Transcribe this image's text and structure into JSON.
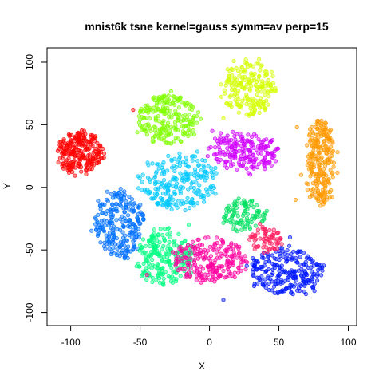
{
  "chart_data": {
    "type": "scatter",
    "title": "mnist6k tsne kernel=gauss symm=av perp=15",
    "xlabel": "X",
    "ylabel": "Y",
    "xlim": [
      -113,
      102
    ],
    "ylim": [
      -106,
      107
    ],
    "x_ticks": [
      -100,
      -50,
      0,
      50,
      100
    ],
    "y_ticks": [
      -100,
      -50,
      0,
      50,
      100
    ],
    "grid": false,
    "legend": "none",
    "clusters": [
      {
        "color": "#ff0000",
        "center": [
          -94,
          28
        ],
        "spread": [
          13,
          13
        ],
        "count": 240,
        "shape": "tilted-oval"
      },
      {
        "color": "#00c8ff",
        "center": [
          -22,
          5
        ],
        "spread": [
          22,
          18
        ],
        "count": 230,
        "shape": "oval"
      },
      {
        "color": "#80ff00",
        "center": [
          -30,
          55
        ],
        "spread": [
          18,
          16
        ],
        "count": 220,
        "shape": "oval"
      },
      {
        "color": "#d4ff00",
        "center": [
          28,
          80
        ],
        "spread": [
          15,
          18
        ],
        "count": 200,
        "shape": "oval"
      },
      {
        "color": "#d000ff",
        "center": [
          25,
          28
        ],
        "spread": [
          20,
          12
        ],
        "count": 200,
        "shape": "oval"
      },
      {
        "color": "#ff9900",
        "center": [
          80,
          20
        ],
        "spread": [
          8,
          28
        ],
        "count": 240,
        "shape": "tall"
      },
      {
        "color": "#0070ff",
        "center": [
          -65,
          -30
        ],
        "spread": [
          14,
          22
        ],
        "count": 240,
        "shape": "oval"
      },
      {
        "color": "#00ff80",
        "center": [
          -32,
          -55
        ],
        "spread": [
          16,
          18
        ],
        "count": 220,
        "shape": "oval"
      },
      {
        "color": "#ff00a0",
        "center": [
          0,
          -58
        ],
        "spread": [
          22,
          14
        ],
        "count": 220,
        "shape": "oval"
      },
      {
        "color": "#0018ff",
        "center": [
          55,
          -67
        ],
        "spread": [
          22,
          15
        ],
        "count": 240,
        "shape": "oval"
      },
      {
        "color": "#00e060",
        "center": [
          25,
          -22
        ],
        "spread": [
          12,
          10
        ],
        "count": 100,
        "shape": "oval"
      },
      {
        "color": "#ff2060",
        "center": [
          40,
          -42
        ],
        "spread": [
          10,
          8
        ],
        "count": 70,
        "shape": "oval"
      }
    ]
  }
}
